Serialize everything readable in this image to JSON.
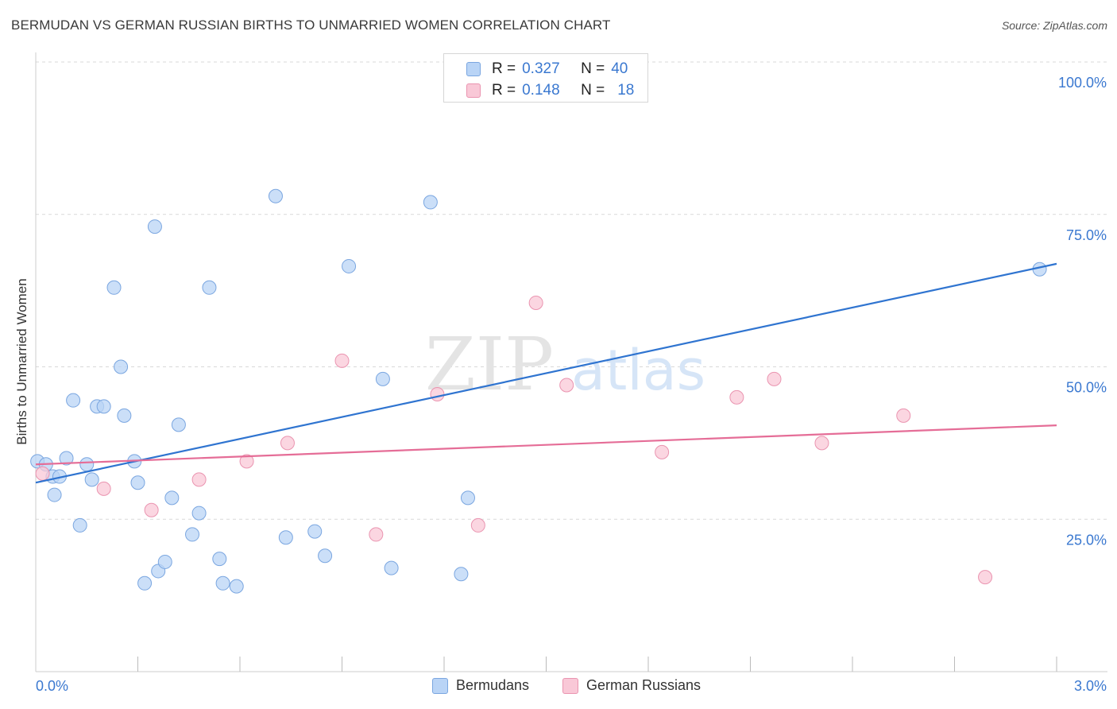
{
  "header": {
    "title": "BERMUDAN VS GERMAN RUSSIAN BIRTHS TO UNMARRIED WOMEN CORRELATION CHART",
    "source": "Source: ZipAtlas.com"
  },
  "legend": {
    "rows": [
      {
        "r_label": "R =",
        "r_value": "0.327",
        "n_label": "N =",
        "n_value": "40"
      },
      {
        "r_label": "R =",
        "r_value": "0.148",
        "n_label": "N =",
        "n_value": "18"
      }
    ],
    "bottom": [
      "Bermudans",
      "German Russians"
    ]
  },
  "watermark": {
    "zip": "ZIP",
    "atlas": "atlas"
  },
  "colors": {
    "blue_fill": "#b9d4f6",
    "blue_stroke": "#7aa6e0",
    "blue_line": "#2f74d0",
    "pink_fill": "#f9c8d7",
    "pink_stroke": "#ea94b0",
    "pink_line": "#e56d97",
    "tick_label": "#3a78d0",
    "grid": "#d9d9d9"
  },
  "chart_data": {
    "type": "scatter",
    "title": "BERMUDAN VS GERMAN RUSSIAN BIRTHS TO UNMARRIED WOMEN CORRELATION CHART",
    "xlabel": "",
    "ylabel": "Births to Unmarried Women",
    "xlim": [
      0.0,
      3.0
    ],
    "ylim": [
      0.0,
      100.0
    ],
    "x_tick_labels": [
      "0.0%",
      "3.0%"
    ],
    "y_tick_labels": [
      "100.0%",
      "75.0%",
      "50.0%",
      "25.0%"
    ],
    "y_ticks": [
      100,
      75,
      50,
      25
    ],
    "grid": "horizontal dashed",
    "legend_position": "top-center",
    "series": [
      {
        "name": "Bermudans",
        "color": "#2f74d0",
        "points": [
          [
            0.005,
            34.5
          ],
          [
            0.03,
            34.0
          ],
          [
            0.05,
            32.0
          ],
          [
            0.055,
            29.0
          ],
          [
            0.07,
            32.0
          ],
          [
            0.09,
            35.0
          ],
          [
            0.11,
            44.5
          ],
          [
            0.13,
            24.0
          ],
          [
            0.15,
            34.0
          ],
          [
            0.165,
            31.5
          ],
          [
            0.18,
            43.5
          ],
          [
            0.2,
            43.5
          ],
          [
            0.23,
            63.0
          ],
          [
            0.25,
            50.0
          ],
          [
            0.26,
            42.0
          ],
          [
            0.29,
            34.5
          ],
          [
            0.3,
            31.0
          ],
          [
            0.32,
            14.5
          ],
          [
            0.35,
            73.0
          ],
          [
            0.36,
            16.5
          ],
          [
            0.38,
            18.0
          ],
          [
            0.4,
            28.5
          ],
          [
            0.42,
            40.5
          ],
          [
            0.46,
            22.5
          ],
          [
            0.48,
            26.0
          ],
          [
            0.51,
            63.0
          ],
          [
            0.54,
            18.5
          ],
          [
            0.55,
            14.5
          ],
          [
            0.59,
            14.0
          ],
          [
            0.705,
            78.0
          ],
          [
            0.735,
            22.0
          ],
          [
            0.82,
            23.0
          ],
          [
            0.85,
            19.0
          ],
          [
            0.92,
            66.5
          ],
          [
            1.02,
            48.0
          ],
          [
            1.045,
            17.0
          ],
          [
            1.16,
            77.0
          ],
          [
            1.25,
            16.0
          ],
          [
            1.27,
            28.5
          ],
          [
            2.95,
            66.0
          ]
        ],
        "trend": {
          "x": [
            0.0,
            3.0
          ],
          "y": [
            31.0,
            66.9
          ]
        }
      },
      {
        "name": "German Russians",
        "color": "#e56d97",
        "points": [
          [
            0.02,
            32.5
          ],
          [
            0.2,
            30.0
          ],
          [
            0.34,
            26.5
          ],
          [
            0.48,
            31.5
          ],
          [
            0.62,
            34.5
          ],
          [
            0.74,
            37.5
          ],
          [
            0.9,
            51.0
          ],
          [
            1.0,
            22.5
          ],
          [
            1.18,
            45.5
          ],
          [
            1.3,
            24.0
          ],
          [
            1.47,
            60.5
          ],
          [
            1.56,
            47.0
          ],
          [
            1.84,
            36.0
          ],
          [
            2.06,
            45.0
          ],
          [
            2.17,
            48.0
          ],
          [
            2.31,
            37.5
          ],
          [
            2.55,
            42.0
          ],
          [
            2.79,
            15.5
          ]
        ],
        "trend": {
          "x": [
            0.0,
            3.0
          ],
          "y": [
            34.0,
            40.4
          ]
        }
      }
    ]
  }
}
